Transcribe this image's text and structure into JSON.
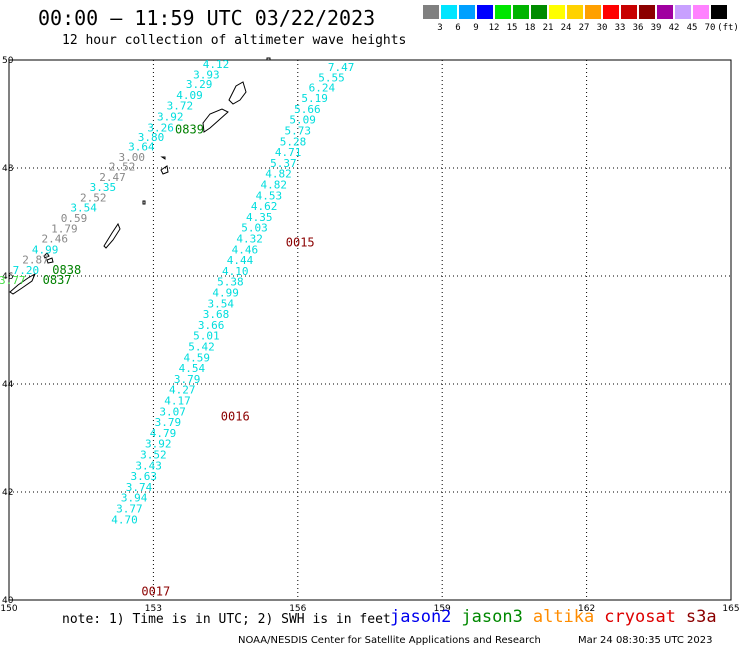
{
  "title": "00:00 – 11:59 UTC 03/22/2023",
  "subtitle": "12 hour collection of altimeter wave heights",
  "colorbar": {
    "colors": [
      "#808080",
      "#00e5ff",
      "#00a0ff",
      "#0000ff",
      "#00e600",
      "#00b400",
      "#008c00",
      "#ffff00",
      "#ffd200",
      "#ffa000",
      "#ff0000",
      "#c80000",
      "#8c0000",
      "#a000a0",
      "#c8a0ff",
      "#ff82ff",
      "#000000"
    ],
    "labels": [
      "3",
      "6",
      "9",
      "12",
      "15",
      "18",
      "21",
      "24",
      "27",
      "30",
      "33",
      "36",
      "39",
      "42",
      "45",
      "70",
      "(ft)"
    ]
  },
  "map": {
    "lon_range": [
      150,
      165
    ],
    "lat_range": [
      40,
      50
    ],
    "lon_ticks": [
      "150",
      "153",
      "156",
      "159",
      "162",
      "165"
    ],
    "lat_ticks": [
      "40",
      "42",
      "44",
      "46",
      "48",
      "50"
    ],
    "grid": "dotted"
  },
  "tracks": [
    {
      "color": "#00dddd",
      "points": [
        {
          "lon": 154.3,
          "lat": 49.85,
          "v": "4.12"
        },
        {
          "lon": 154.1,
          "lat": 49.66,
          "v": "3.93"
        },
        {
          "lon": 153.95,
          "lat": 49.48,
          "v": "3.29"
        },
        {
          "lon": 153.75,
          "lat": 49.28,
          "v": "4.09"
        },
        {
          "lon": 153.55,
          "lat": 49.08,
          "v": "3.72"
        },
        {
          "lon": 153.35,
          "lat": 48.88,
          "v": "3.92"
        },
        {
          "lon": 153.15,
          "lat": 48.68,
          "v": "3.26"
        },
        {
          "lon": 152.95,
          "lat": 48.5,
          "v": "3.80"
        },
        {
          "lon": 152.75,
          "lat": 48.32,
          "v": "3.64"
        }
      ]
    },
    {
      "color": "#888888",
      "points": [
        {
          "lon": 152.55,
          "lat": 48.13,
          "v": "3.00"
        },
        {
          "lon": 152.35,
          "lat": 47.95,
          "v": "2.52"
        },
        {
          "lon": 152.15,
          "lat": 47.76,
          "v": "2.47"
        }
      ]
    },
    {
      "color": "#00dddd",
      "points": [
        {
          "lon": 151.95,
          "lat": 47.57,
          "v": "3.35"
        }
      ]
    },
    {
      "color": "#888888",
      "points": [
        {
          "lon": 151.75,
          "lat": 47.38,
          "v": "2.52"
        }
      ]
    },
    {
      "color": "#00dddd",
      "points": [
        {
          "lon": 151.55,
          "lat": 47.19,
          "v": "3.54"
        }
      ]
    },
    {
      "color": "#888888",
      "points": [
        {
          "lon": 151.35,
          "lat": 47.0,
          "v": "0.59"
        },
        {
          "lon": 151.15,
          "lat": 46.81,
          "v": "1.79"
        },
        {
          "lon": 150.95,
          "lat": 46.62,
          "v": "2.46"
        }
      ]
    },
    {
      "color": "#00dddd",
      "points": [
        {
          "lon": 150.75,
          "lat": 46.42,
          "v": "4.99"
        }
      ]
    },
    {
      "color": "#888888",
      "points": [
        {
          "lon": 150.55,
          "lat": 46.23,
          "v": "2.87"
        }
      ]
    },
    {
      "color": "#00dddd",
      "points": [
        {
          "lon": 150.35,
          "lat": 46.04,
          "v": "7.20"
        }
      ]
    },
    {
      "color": "#44dd44",
      "points": [
        {
          "lon": 150.0,
          "lat": 45.85,
          "v": "13.77"
        }
      ]
    },
    {
      "color": "#00dddd",
      "points": [
        {
          "lon": 156.9,
          "lat": 49.8,
          "v": "7.47"
        },
        {
          "lon": 156.7,
          "lat": 49.6,
          "v": "5.55"
        },
        {
          "lon": 156.5,
          "lat": 49.42,
          "v": "6.24"
        },
        {
          "lon": 156.35,
          "lat": 49.22,
          "v": "5.19"
        },
        {
          "lon": 156.2,
          "lat": 49.02,
          "v": "5.66"
        },
        {
          "lon": 156.1,
          "lat": 48.82,
          "v": "5.09"
        },
        {
          "lon": 156.0,
          "lat": 48.62,
          "v": "5.73"
        },
        {
          "lon": 155.9,
          "lat": 48.42,
          "v": "5.28"
        },
        {
          "lon": 155.8,
          "lat": 48.22,
          "v": "4.71"
        },
        {
          "lon": 155.7,
          "lat": 48.02,
          "v": "5.37"
        },
        {
          "lon": 155.6,
          "lat": 47.82,
          "v": "4.82"
        },
        {
          "lon": 155.5,
          "lat": 47.62,
          "v": "4.82"
        },
        {
          "lon": 155.4,
          "lat": 47.42,
          "v": "4.53"
        },
        {
          "lon": 155.3,
          "lat": 47.22,
          "v": "4.62"
        },
        {
          "lon": 155.2,
          "lat": 47.02,
          "v": "4.35"
        },
        {
          "lon": 155.1,
          "lat": 46.82,
          "v": "5.03"
        },
        {
          "lon": 155.0,
          "lat": 46.62,
          "v": "4.32"
        },
        {
          "lon": 154.9,
          "lat": 46.42,
          "v": "4.46"
        },
        {
          "lon": 154.8,
          "lat": 46.22,
          "v": "4.44"
        },
        {
          "lon": 154.7,
          "lat": 46.02,
          "v": "4.10"
        },
        {
          "lon": 154.6,
          "lat": 45.82,
          "v": "5.38"
        },
        {
          "lon": 154.5,
          "lat": 45.62,
          "v": "4.99"
        },
        {
          "lon": 154.4,
          "lat": 45.42,
          "v": "3.54"
        },
        {
          "lon": 154.3,
          "lat": 45.22,
          "v": "3.68"
        },
        {
          "lon": 154.2,
          "lat": 45.02,
          "v": "3.66"
        },
        {
          "lon": 154.1,
          "lat": 44.82,
          "v": "5.01"
        },
        {
          "lon": 154.0,
          "lat": 44.62,
          "v": "5.42"
        },
        {
          "lon": 153.9,
          "lat": 44.42,
          "v": "4.59"
        },
        {
          "lon": 153.8,
          "lat": 44.22,
          "v": "4.54"
        },
        {
          "lon": 153.7,
          "lat": 44.02,
          "v": "3.79"
        },
        {
          "lon": 153.6,
          "lat": 43.82,
          "v": "4.27"
        },
        {
          "lon": 153.5,
          "lat": 43.62,
          "v": "4.17"
        },
        {
          "lon": 153.4,
          "lat": 43.42,
          "v": "3.07"
        },
        {
          "lon": 153.3,
          "lat": 43.22,
          "v": "3.79"
        },
        {
          "lon": 153.2,
          "lat": 43.02,
          "v": "4.79"
        },
        {
          "lon": 153.1,
          "lat": 42.82,
          "v": "3.92"
        },
        {
          "lon": 153.0,
          "lat": 42.62,
          "v": "3.52"
        },
        {
          "lon": 152.9,
          "lat": 42.42,
          "v": "3.43"
        },
        {
          "lon": 152.8,
          "lat": 42.22,
          "v": "3.63"
        },
        {
          "lon": 152.7,
          "lat": 42.02,
          "v": "3.74"
        },
        {
          "lon": 152.6,
          "lat": 41.82,
          "v": "3.94"
        },
        {
          "lon": 152.5,
          "lat": 41.62,
          "v": "3.77"
        },
        {
          "lon": 152.4,
          "lat": 41.42,
          "v": "4.70"
        }
      ]
    }
  ],
  "time_labels": [
    {
      "text": "0839",
      "color": "#008000",
      "lon": 153.75,
      "lat": 48.64
    },
    {
      "text": "0838",
      "color": "#008000",
      "lon": 151.2,
      "lat": 46.04
    },
    {
      "text": "0837",
      "color": "#008000",
      "lon": 151.0,
      "lat": 45.85
    },
    {
      "text": "0015",
      "color": "#8b0000",
      "lon": 156.05,
      "lat": 46.55
    },
    {
      "text": "0016",
      "color": "#8b0000",
      "lon": 154.7,
      "lat": 43.32
    },
    {
      "text": "0017",
      "color": "#8b0000",
      "lon": 153.05,
      "lat": 40.08
    }
  ],
  "note": "note: 1) Time is in UTC; 2) SWH is in feet",
  "satellites": [
    {
      "name": "jason2",
      "color": "#0000ee"
    },
    {
      "name": "jason3",
      "color": "#008800"
    },
    {
      "name": "altika",
      "color": "#ff8c00"
    },
    {
      "name": "cryosat",
      "color": "#dd0000"
    },
    {
      "name": "s3a",
      "color": "#8b0000"
    }
  ],
  "credit": "NOAA/NESDIS Center for Satellite Applications and Research",
  "credit_date": "Mar 24 08:30:35 UTC 2023"
}
